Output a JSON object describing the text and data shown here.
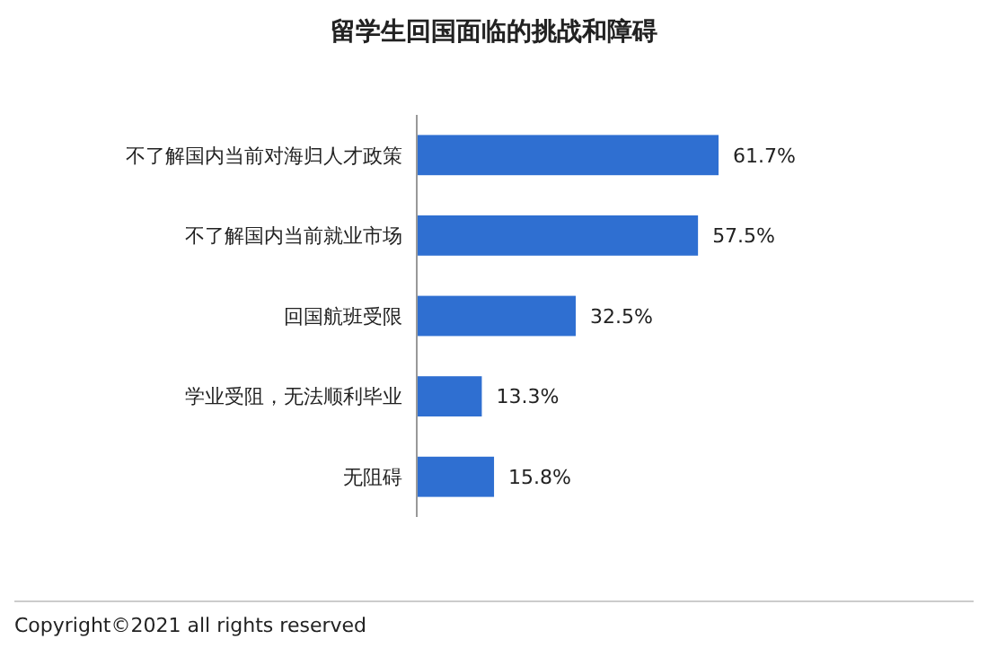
{
  "chart_data": {
    "type": "bar",
    "orientation": "horizontal",
    "title": "留学生回国面临的挑战和障碍",
    "categories": [
      "不了解国内当前对海归人才政策",
      "不了解国内当前就业市场",
      "回国航班受限",
      "学业受阻，无法顺利毕业",
      "无阻碍"
    ],
    "values": [
      61.7,
      57.5,
      32.5,
      13.3,
      15.8
    ],
    "color": "#2f6fd1",
    "value_labels": [
      "61.7%",
      "57.5%",
      "32.5%",
      "13.3%",
      "15.8%"
    ],
    "annotations": [
      "Copyright©2021 all rights reserved"
    ]
  }
}
